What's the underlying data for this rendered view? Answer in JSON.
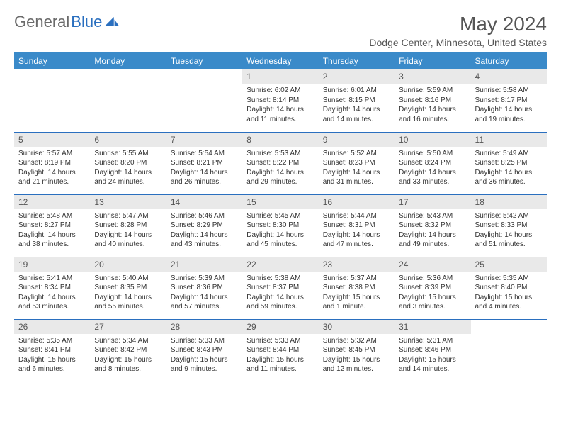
{
  "logo": {
    "part1": "General",
    "part2": "Blue"
  },
  "title": "May 2024",
  "location": "Dodge Center, Minnesota, United States",
  "colors": {
    "header_bg": "#3a8ac9",
    "header_text": "#ffffff",
    "daynum_bg": "#e9e9e9",
    "border": "#2a6fbf",
    "title_text": "#555555",
    "body_text": "#333333"
  },
  "day_headers": [
    "Sunday",
    "Monday",
    "Tuesday",
    "Wednesday",
    "Thursday",
    "Friday",
    "Saturday"
  ],
  "weeks": [
    [
      null,
      null,
      null,
      {
        "n": "1",
        "sr": "6:02 AM",
        "ss": "8:14 PM",
        "dl": "14 hours and 11 minutes."
      },
      {
        "n": "2",
        "sr": "6:01 AM",
        "ss": "8:15 PM",
        "dl": "14 hours and 14 minutes."
      },
      {
        "n": "3",
        "sr": "5:59 AM",
        "ss": "8:16 PM",
        "dl": "14 hours and 16 minutes."
      },
      {
        "n": "4",
        "sr": "5:58 AM",
        "ss": "8:17 PM",
        "dl": "14 hours and 19 minutes."
      }
    ],
    [
      {
        "n": "5",
        "sr": "5:57 AM",
        "ss": "8:19 PM",
        "dl": "14 hours and 21 minutes."
      },
      {
        "n": "6",
        "sr": "5:55 AM",
        "ss": "8:20 PM",
        "dl": "14 hours and 24 minutes."
      },
      {
        "n": "7",
        "sr": "5:54 AM",
        "ss": "8:21 PM",
        "dl": "14 hours and 26 minutes."
      },
      {
        "n": "8",
        "sr": "5:53 AM",
        "ss": "8:22 PM",
        "dl": "14 hours and 29 minutes."
      },
      {
        "n": "9",
        "sr": "5:52 AM",
        "ss": "8:23 PM",
        "dl": "14 hours and 31 minutes."
      },
      {
        "n": "10",
        "sr": "5:50 AM",
        "ss": "8:24 PM",
        "dl": "14 hours and 33 minutes."
      },
      {
        "n": "11",
        "sr": "5:49 AM",
        "ss": "8:25 PM",
        "dl": "14 hours and 36 minutes."
      }
    ],
    [
      {
        "n": "12",
        "sr": "5:48 AM",
        "ss": "8:27 PM",
        "dl": "14 hours and 38 minutes."
      },
      {
        "n": "13",
        "sr": "5:47 AM",
        "ss": "8:28 PM",
        "dl": "14 hours and 40 minutes."
      },
      {
        "n": "14",
        "sr": "5:46 AM",
        "ss": "8:29 PM",
        "dl": "14 hours and 43 minutes."
      },
      {
        "n": "15",
        "sr": "5:45 AM",
        "ss": "8:30 PM",
        "dl": "14 hours and 45 minutes."
      },
      {
        "n": "16",
        "sr": "5:44 AM",
        "ss": "8:31 PM",
        "dl": "14 hours and 47 minutes."
      },
      {
        "n": "17",
        "sr": "5:43 AM",
        "ss": "8:32 PM",
        "dl": "14 hours and 49 minutes."
      },
      {
        "n": "18",
        "sr": "5:42 AM",
        "ss": "8:33 PM",
        "dl": "14 hours and 51 minutes."
      }
    ],
    [
      {
        "n": "19",
        "sr": "5:41 AM",
        "ss": "8:34 PM",
        "dl": "14 hours and 53 minutes."
      },
      {
        "n": "20",
        "sr": "5:40 AM",
        "ss": "8:35 PM",
        "dl": "14 hours and 55 minutes."
      },
      {
        "n": "21",
        "sr": "5:39 AM",
        "ss": "8:36 PM",
        "dl": "14 hours and 57 minutes."
      },
      {
        "n": "22",
        "sr": "5:38 AM",
        "ss": "8:37 PM",
        "dl": "14 hours and 59 minutes."
      },
      {
        "n": "23",
        "sr": "5:37 AM",
        "ss": "8:38 PM",
        "dl": "15 hours and 1 minute."
      },
      {
        "n": "24",
        "sr": "5:36 AM",
        "ss": "8:39 PM",
        "dl": "15 hours and 3 minutes."
      },
      {
        "n": "25",
        "sr": "5:35 AM",
        "ss": "8:40 PM",
        "dl": "15 hours and 4 minutes."
      }
    ],
    [
      {
        "n": "26",
        "sr": "5:35 AM",
        "ss": "8:41 PM",
        "dl": "15 hours and 6 minutes."
      },
      {
        "n": "27",
        "sr": "5:34 AM",
        "ss": "8:42 PM",
        "dl": "15 hours and 8 minutes."
      },
      {
        "n": "28",
        "sr": "5:33 AM",
        "ss": "8:43 PM",
        "dl": "15 hours and 9 minutes."
      },
      {
        "n": "29",
        "sr": "5:33 AM",
        "ss": "8:44 PM",
        "dl": "15 hours and 11 minutes."
      },
      {
        "n": "30",
        "sr": "5:32 AM",
        "ss": "8:45 PM",
        "dl": "15 hours and 12 minutes."
      },
      {
        "n": "31",
        "sr": "5:31 AM",
        "ss": "8:46 PM",
        "dl": "15 hours and 14 minutes."
      },
      null
    ]
  ],
  "labels": {
    "sunrise": "Sunrise:",
    "sunset": "Sunset:",
    "daylight": "Daylight:"
  }
}
